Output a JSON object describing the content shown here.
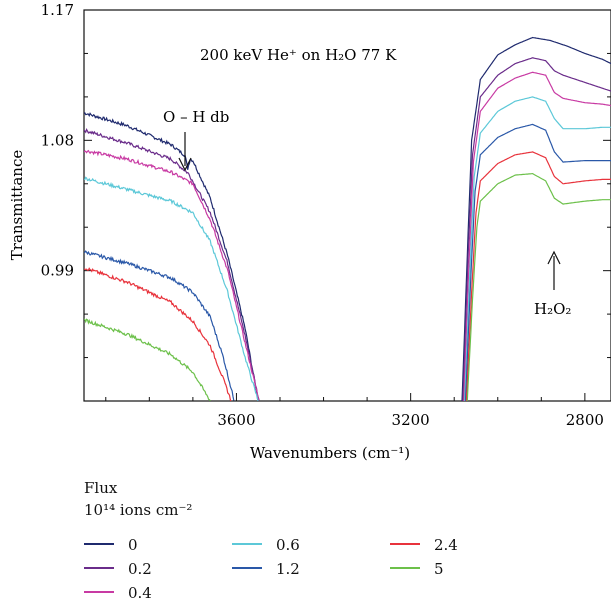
{
  "chart_data": {
    "type": "line",
    "title": "200 keV He⁺ on H₂O 77 K",
    "xlabel": "Wavenumbers (cm⁻¹)",
    "ylabel": "Transmittance",
    "xlim": [
      3950,
      2740
    ],
    "ylim": [
      0.9,
      1.17
    ],
    "x_ticks": [
      3600,
      3200,
      2800
    ],
    "y_ticks": [
      0.99,
      1.08,
      1.17
    ],
    "annotations": [
      {
        "text": "O – H db",
        "x": 3710,
        "y": 1.06
      },
      {
        "text": "H₂O₂",
        "x": 2855,
        "y": 1.038
      }
    ],
    "legend": {
      "title": "Flux",
      "unit": "10¹⁴ ions cm⁻²"
    },
    "series": [
      {
        "name": "0",
        "color": "#1f2a6e",
        "left": [
          [
            3950,
            1.099
          ],
          [
            3850,
            1.09
          ],
          [
            3750,
            1.077
          ],
          [
            3720,
            1.07
          ],
          [
            3700,
            1.066
          ],
          [
            3660,
            1.04
          ],
          [
            3620,
            1.0
          ],
          [
            3580,
            0.95
          ],
          [
            3550,
            0.9
          ]
        ],
        "right": [
          [
            3082,
            0.9
          ],
          [
            3070,
            1.0
          ],
          [
            3060,
            1.08
          ],
          [
            3040,
            1.122
          ],
          [
            3000,
            1.139
          ],
          [
            2960,
            1.146
          ],
          [
            2920,
            1.151
          ],
          [
            2880,
            1.149
          ],
          [
            2840,
            1.145
          ],
          [
            2800,
            1.14
          ],
          [
            2760,
            1.136
          ],
          [
            2740,
            1.133
          ]
        ]
      },
      {
        "name": "0.2",
        "color": "#6a2c8a",
        "left": [
          [
            3950,
            1.087
          ],
          [
            3850,
            1.078
          ],
          [
            3750,
            1.067
          ],
          [
            3710,
            1.057
          ],
          [
            3660,
            1.03
          ],
          [
            3620,
            0.995
          ],
          [
            3580,
            0.945
          ],
          [
            3548,
            0.9
          ]
        ],
        "right": [
          [
            3080,
            0.9
          ],
          [
            3068,
            1.0
          ],
          [
            3058,
            1.07
          ],
          [
            3040,
            1.11
          ],
          [
            3000,
            1.125
          ],
          [
            2960,
            1.133
          ],
          [
            2920,
            1.137
          ],
          [
            2890,
            1.135
          ],
          [
            2870,
            1.128
          ],
          [
            2850,
            1.125
          ],
          [
            2800,
            1.12
          ],
          [
            2760,
            1.116
          ],
          [
            2740,
            1.114
          ]
        ]
      },
      {
        "name": "0.4",
        "color": "#c83aa3",
        "left": [
          [
            3950,
            1.073
          ],
          [
            3850,
            1.067
          ],
          [
            3750,
            1.058
          ],
          [
            3700,
            1.05
          ],
          [
            3660,
            1.025
          ],
          [
            3620,
            0.99
          ],
          [
            3580,
            0.94
          ],
          [
            3548,
            0.9
          ]
        ],
        "right": [
          [
            3078,
            0.9
          ],
          [
            3066,
            0.995
          ],
          [
            3056,
            1.065
          ],
          [
            3040,
            1.1
          ],
          [
            3000,
            1.116
          ],
          [
            2960,
            1.123
          ],
          [
            2920,
            1.127
          ],
          [
            2890,
            1.125
          ],
          [
            2870,
            1.113
          ],
          [
            2850,
            1.109
          ],
          [
            2800,
            1.106
          ],
          [
            2760,
            1.105
          ],
          [
            2740,
            1.104
          ]
        ]
      },
      {
        "name": "0.6",
        "color": "#5cc8d8",
        "left": [
          [
            3950,
            1.054
          ],
          [
            3850,
            1.046
          ],
          [
            3750,
            1.038
          ],
          [
            3700,
            1.03
          ],
          [
            3660,
            1.01
          ],
          [
            3620,
            0.975
          ],
          [
            3580,
            0.93
          ],
          [
            3550,
            0.9
          ]
        ],
        "right": [
          [
            3076,
            0.9
          ],
          [
            3064,
            0.99
          ],
          [
            3054,
            1.055
          ],
          [
            3040,
            1.085
          ],
          [
            3000,
            1.1
          ],
          [
            2960,
            1.107
          ],
          [
            2920,
            1.11
          ],
          [
            2890,
            1.107
          ],
          [
            2870,
            1.095
          ],
          [
            2850,
            1.088
          ],
          [
            2800,
            1.088
          ],
          [
            2760,
            1.089
          ],
          [
            2740,
            1.089
          ]
        ]
      },
      {
        "name": "1.2",
        "color": "#2a58a8",
        "left": [
          [
            3950,
            1.003
          ],
          [
            3850,
            0.995
          ],
          [
            3750,
            0.985
          ],
          [
            3700,
            0.975
          ],
          [
            3660,
            0.958
          ],
          [
            3630,
            0.93
          ],
          [
            3605,
            0.9
          ]
        ],
        "right": [
          [
            3074,
            0.9
          ],
          [
            3062,
            0.985
          ],
          [
            3052,
            1.045
          ],
          [
            3040,
            1.07
          ],
          [
            3000,
            1.082
          ],
          [
            2960,
            1.088
          ],
          [
            2920,
            1.091
          ],
          [
            2890,
            1.087
          ],
          [
            2870,
            1.072
          ],
          [
            2850,
            1.065
          ],
          [
            2800,
            1.066
          ],
          [
            2760,
            1.066
          ],
          [
            2740,
            1.066
          ]
        ]
      },
      {
        "name": "2.4",
        "color": "#e8333c",
        "left": [
          [
            3950,
            0.992
          ],
          [
            3850,
            0.982
          ],
          [
            3750,
            0.968
          ],
          [
            3700,
            0.955
          ],
          [
            3660,
            0.938
          ],
          [
            3630,
            0.915
          ],
          [
            3612,
            0.9
          ]
        ],
        "right": [
          [
            3072,
            0.9
          ],
          [
            3060,
            0.975
          ],
          [
            3050,
            1.03
          ],
          [
            3040,
            1.052
          ],
          [
            3000,
            1.064
          ],
          [
            2960,
            1.07
          ],
          [
            2920,
            1.072
          ],
          [
            2890,
            1.068
          ],
          [
            2870,
            1.055
          ],
          [
            2850,
            1.05
          ],
          [
            2800,
            1.052
          ],
          [
            2760,
            1.053
          ],
          [
            2740,
            1.053
          ]
        ]
      },
      {
        "name": "5",
        "color": "#6cc04a",
        "left": [
          [
            3950,
            0.956
          ],
          [
            3850,
            0.946
          ],
          [
            3750,
            0.932
          ],
          [
            3700,
            0.92
          ],
          [
            3670,
            0.905
          ],
          [
            3660,
            0.9
          ]
        ],
        "right": [
          [
            3070,
            0.9
          ],
          [
            3058,
            0.97
          ],
          [
            3048,
            1.02
          ],
          [
            3040,
            1.038
          ],
          [
            3000,
            1.05
          ],
          [
            2960,
            1.056
          ],
          [
            2920,
            1.057
          ],
          [
            2890,
            1.052
          ],
          [
            2870,
            1.04
          ],
          [
            2850,
            1.036
          ],
          [
            2800,
            1.038
          ],
          [
            2760,
            1.039
          ],
          [
            2740,
            1.039
          ]
        ]
      }
    ]
  }
}
